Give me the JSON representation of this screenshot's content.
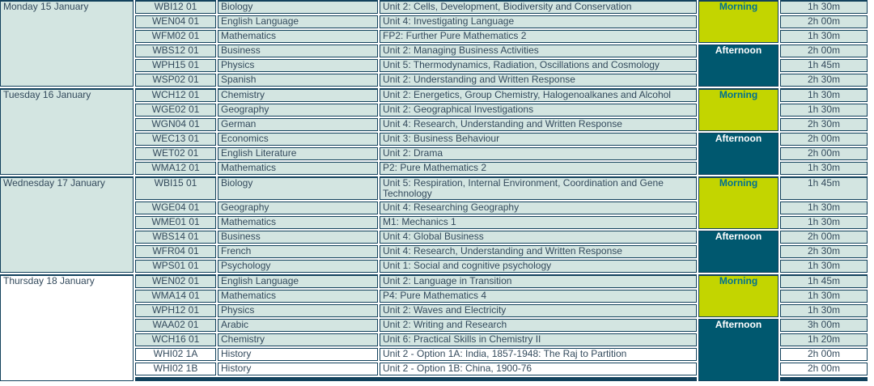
{
  "colors": {
    "row_highlight": "#d3e5e1",
    "row_plain": "#ffffff",
    "border": "#12415c",
    "text": "#334a5c",
    "morning_bg": "#c3d500",
    "morning_text": "#00708f",
    "afternoon_bg": "#00586f",
    "afternoon_text": "#ffffff"
  },
  "table": {
    "groups": [
      {
        "date": "Monday 15 January",
        "sessions": [
          {
            "label": "Morning",
            "type": "morning",
            "start": 0,
            "span": 3
          },
          {
            "label": "Afternoon",
            "type": "afternoon",
            "start": 3,
            "span": 3
          }
        ],
        "rows": [
          {
            "code": "WBI12 01",
            "subject": "Biology",
            "unit": "Unit 2: Cells, Development, Biodiversity and Conservation",
            "duration": "1h 30m"
          },
          {
            "code": "WEN04 01",
            "subject": "English Language",
            "unit": "Unit 4: Investigating Language",
            "duration": "2h 00m"
          },
          {
            "code": "WFM02 01",
            "subject": "Mathematics",
            "unit": "FP2: Further Pure Mathematics 2",
            "duration": "1h 30m"
          },
          {
            "code": "WBS12 01",
            "subject": "Business",
            "unit": "Unit 2: Managing Business Activities",
            "duration": "2h 00m"
          },
          {
            "code": "WPH15 01",
            "subject": "Physics",
            "unit": "Unit 5: Thermodynamics, Radiation, Oscillations and Cosmology",
            "duration": "1h 45m"
          },
          {
            "code": "WSP02 01",
            "subject": "Spanish",
            "unit": "Unit 2: Understanding and Written Response",
            "duration": "2h 30m"
          }
        ]
      },
      {
        "date": "Tuesday 16 January",
        "sessions": [
          {
            "label": "Morning",
            "type": "morning",
            "start": 0,
            "span": 3
          },
          {
            "label": "Afternoon",
            "type": "afternoon",
            "start": 3,
            "span": 3
          }
        ],
        "rows": [
          {
            "code": "WCH12 01",
            "subject": "Chemistry",
            "unit": "Unit 2: Energetics, Group Chemistry, Halogenoalkanes and Alcohol",
            "duration": "1h 30m"
          },
          {
            "code": "WGE02 01",
            "subject": "Geography",
            "unit": "Unit 2: Geographical Investigations",
            "duration": "1h 30m"
          },
          {
            "code": "WGN04 01",
            "subject": "German",
            "unit": "Unit 4: Research, Understanding and Written Response",
            "duration": "2h 30m"
          },
          {
            "code": "WEC13 01",
            "subject": "Economics",
            "unit": "Unit 3: Business Behaviour",
            "duration": "2h 00m"
          },
          {
            "code": "WET02 01",
            "subject": "English Literature",
            "unit": "Unit 2: Drama",
            "duration": "2h 00m"
          },
          {
            "code": "WMA12 01",
            "subject": "Mathematics",
            "unit": "P2: Pure Mathematics 2",
            "duration": "1h 30m"
          }
        ]
      },
      {
        "date": "Wednesday 17 January",
        "sessions": [
          {
            "label": "Morning",
            "type": "morning",
            "start": 0,
            "span": 3
          },
          {
            "label": "Afternoon",
            "type": "afternoon",
            "start": 3,
            "span": 3
          }
        ],
        "rows": [
          {
            "code": "WBI15 01",
            "subject": "Biology",
            "unit": "Unit 5: Respiration, Internal Environment, Coordination and Gene Technology",
            "duration": "1h 45m",
            "tall": true
          },
          {
            "code": "WGE04 01",
            "subject": "Geography",
            "unit": "Unit 4: Researching Geography",
            "duration": "1h 30m"
          },
          {
            "code": "WME01 01",
            "subject": "Mathematics",
            "unit": "M1: Mechanics 1",
            "duration": "1h 30m"
          },
          {
            "code": "WBS14 01",
            "subject": "Business",
            "unit": "Unit 4: Global Business",
            "duration": "2h 00m"
          },
          {
            "code": "WFR04 01",
            "subject": "French",
            "unit": "Unit 4: Research, Understanding and Written Response",
            "duration": "2h 30m"
          },
          {
            "code": "WPS01 01",
            "subject": "Psychology",
            "unit": "Unit 1: Social and cognitive psychology",
            "duration": "1h 30m"
          }
        ]
      },
      {
        "date": "Thursday 18 January",
        "date_plain": true,
        "cut_row": true,
        "sessions": [
          {
            "label": "Morning",
            "type": "morning",
            "start": 0,
            "span": 3
          },
          {
            "label": "Afternoon",
            "type": "afternoon",
            "start": 3,
            "span": 5
          }
        ],
        "rows": [
          {
            "code": "WEN02 01",
            "subject": "English Language",
            "unit": "Unit 2: Language in Transition",
            "duration": "1h 45m"
          },
          {
            "code": "WMA14 01",
            "subject": "Mathematics",
            "unit": "P4: Pure Mathematics 4",
            "duration": "1h 30m"
          },
          {
            "code": "WPH12 01",
            "subject": "Physics",
            "unit": "Unit 2: Waves and Electricity",
            "duration": "1h 30m"
          },
          {
            "code": "WAA02 01",
            "subject": "Arabic",
            "unit": "Unit 2: Writing and Research",
            "duration": "3h 00m"
          },
          {
            "code": "WCH16 01",
            "subject": "Chemistry",
            "unit": "Unit 6: Practical Skills in Chemistry II",
            "duration": "1h 20m"
          },
          {
            "code": "WHI02 1A",
            "subject": "History",
            "unit": "Unit 2 - Option 1A: India, 1857-1948: The Raj to Partition",
            "duration": "2h 00m",
            "plain": true
          },
          {
            "code": "WHI02 1B",
            "subject": "History",
            "unit": "Unit 2 - Option 1B: China, 1900-76",
            "duration": "2h 00m",
            "plain": true
          }
        ]
      }
    ]
  }
}
